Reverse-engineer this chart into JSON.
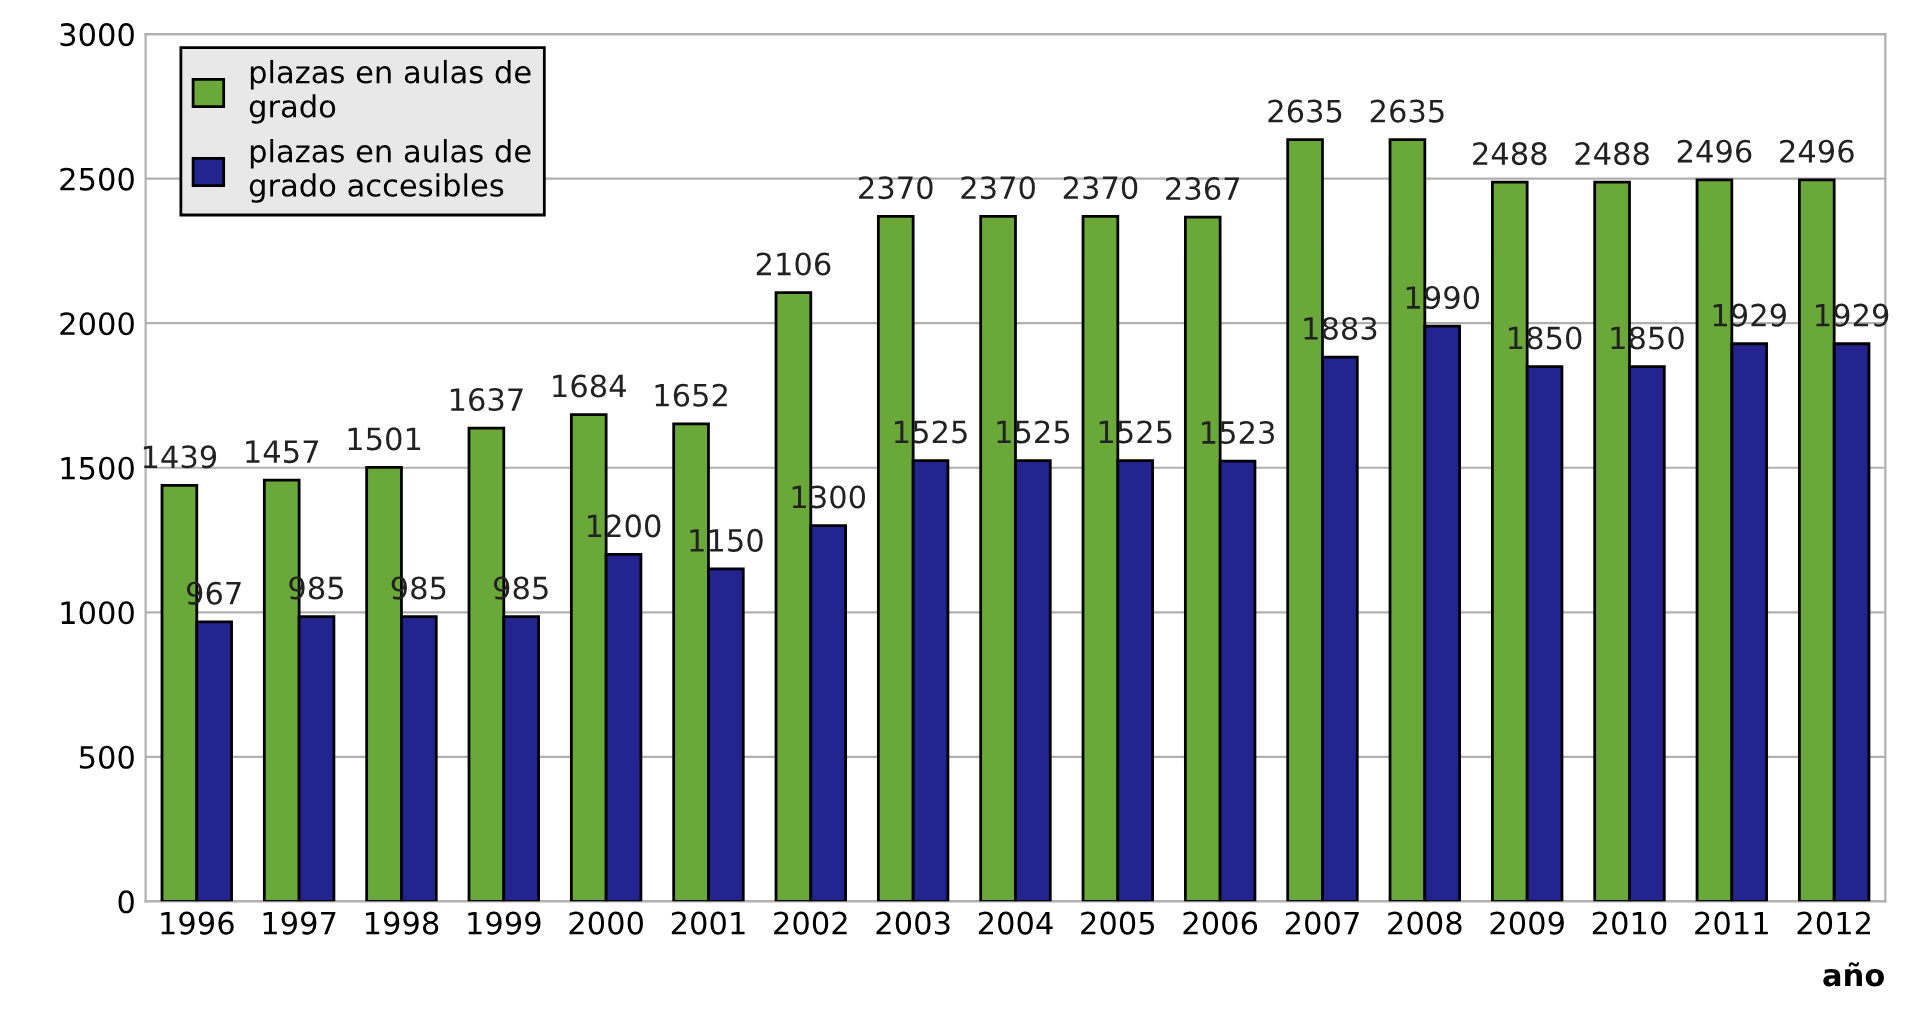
{
  "chart_data": {
    "type": "bar",
    "xlabel": "año",
    "categories": [
      "1996",
      "1997",
      "1998",
      "1999",
      "2000",
      "2001",
      "2002",
      "2003",
      "2004",
      "2005",
      "2006",
      "2007",
      "2008",
      "2009",
      "2010",
      "2011",
      "2012"
    ],
    "series": [
      {
        "name": "plazas en aulas de grado",
        "color": "#6aa83a",
        "values": [
          1439,
          1457,
          1501,
          1637,
          1684,
          1652,
          2106,
          2370,
          2370,
          2370,
          2367,
          2635,
          2635,
          2488,
          2488,
          2496,
          2496
        ]
      },
      {
        "name": "plazas en aulas de grado accesibles",
        "color": "#24248f",
        "values": [
          967,
          985,
          985,
          985,
          1200,
          1150,
          1300,
          1525,
          1525,
          1525,
          1523,
          1883,
          1990,
          1850,
          1850,
          1929,
          1929
        ]
      }
    ],
    "ylim": [
      0,
      3000
    ],
    "yticks": [
      0,
      500,
      1000,
      1500,
      2000,
      2500,
      3000
    ],
    "grid": "y",
    "legend": "top left",
    "data_labels": true
  }
}
